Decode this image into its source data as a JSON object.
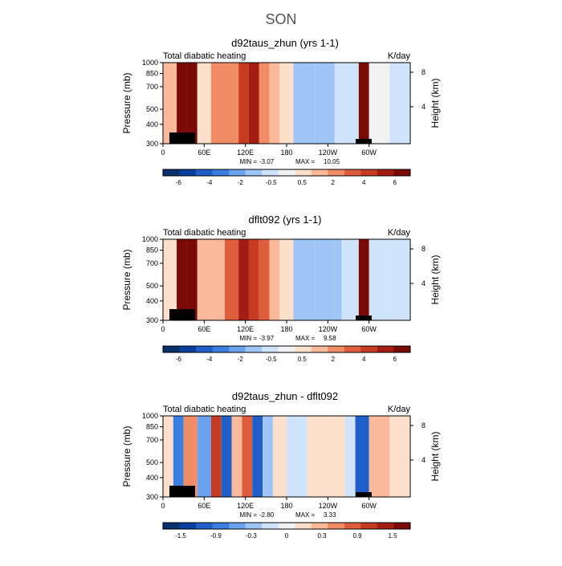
{
  "figure": {
    "title": "SON"
  },
  "colors": {
    "diverging": [
      "#08306b",
      "#0a3f9e",
      "#1f5fc7",
      "#3a7ee0",
      "#6aa2ee",
      "#9ec5f6",
      "#cfe3fb",
      "#f2f2f2",
      "#fde0cc",
      "#f9b99a",
      "#f08c66",
      "#de5d3c",
      "#c63b22",
      "#a41d12",
      "#7a0a05"
    ]
  },
  "chart_data": [
    {
      "type": "heatmap",
      "title": "d92taus_zhun (yrs 1-1)",
      "left_label": "Total diabatic heating",
      "right_label": "K/day",
      "ylabel": "Pressure (mb)",
      "ylabel_right": "Height (km)",
      "x_ticks": [
        "0",
        "60E",
        "120E",
        "180",
        "120W",
        "60W"
      ],
      "y_ticks": [
        "300",
        "400",
        "500",
        "700",
        "850",
        "1000"
      ],
      "y_right_ticks": [
        "8",
        "4"
      ],
      "min": -3.07,
      "max": 10.05,
      "min_label": "MIN =",
      "min_text": "-3.07",
      "max_label": "MAX =",
      "max_text": "10.05",
      "colorbar_labels": [
        "-6",
        "-4",
        "-2",
        "-0.5",
        "0.5",
        "2",
        "4",
        "6"
      ],
      "field": [
        {
          "lon": 0,
          "value": 1.5
        },
        {
          "lon": 20,
          "value": 8.0
        },
        {
          "lon": 35,
          "value": 6.0
        },
        {
          "lon": 50,
          "value": 1.0
        },
        {
          "lon": 70,
          "value": 2.5
        },
        {
          "lon": 90,
          "value": 3.0
        },
        {
          "lon": 110,
          "value": 4.5
        },
        {
          "lon": 125,
          "value": 5.0
        },
        {
          "lon": 140,
          "value": 3.0
        },
        {
          "lon": 155,
          "value": 2.0
        },
        {
          "lon": 170,
          "value": 0.5
        },
        {
          "lon": 190,
          "value": -1.5
        },
        {
          "lon": 220,
          "value": -1.5
        },
        {
          "lon": 250,
          "value": -1.0
        },
        {
          "lon": 260,
          "value": -0.5
        },
        {
          "lon": 285,
          "value": 8.0
        },
        {
          "lon": 300,
          "value": -0.3
        },
        {
          "lon": 330,
          "value": -0.8
        },
        {
          "lon": 358,
          "value": -0.7
        }
      ]
    },
    {
      "type": "heatmap",
      "title": "dflt092 (yrs 1-1)",
      "left_label": "Total diabatic heating",
      "right_label": "K/day",
      "ylabel": "Pressure (mb)",
      "ylabel_right": "Height (km)",
      "x_ticks": [
        "0",
        "60E",
        "120E",
        "180",
        "120W",
        "60W"
      ],
      "y_ticks": [
        "300",
        "400",
        "500",
        "700",
        "850",
        "1000"
      ],
      "y_right_ticks": [
        "8",
        "4"
      ],
      "min": -3.97,
      "max": 9.58,
      "min_label": "MIN =",
      "min_text": "-3.97",
      "max_label": "MAX =",
      "max_text": "9.58",
      "colorbar_labels": [
        "-6",
        "-4",
        "-2",
        "-0.5",
        "0.5",
        "2",
        "4",
        "6"
      ],
      "field": [
        {
          "lon": 0,
          "value": 1.0
        },
        {
          "lon": 20,
          "value": 7.5
        },
        {
          "lon": 35,
          "value": 5.5
        },
        {
          "lon": 50,
          "value": 1.5
        },
        {
          "lon": 70,
          "value": 2.0
        },
        {
          "lon": 90,
          "value": 3.5
        },
        {
          "lon": 110,
          "value": 5.0
        },
        {
          "lon": 125,
          "value": 4.5
        },
        {
          "lon": 140,
          "value": 3.5
        },
        {
          "lon": 155,
          "value": 2.0
        },
        {
          "lon": 170,
          "value": 0.5
        },
        {
          "lon": 190,
          "value": -1.5
        },
        {
          "lon": 220,
          "value": -2.0
        },
        {
          "lon": 250,
          "value": -1.5
        },
        {
          "lon": 260,
          "value": -0.8
        },
        {
          "lon": 285,
          "value": 7.5
        },
        {
          "lon": 300,
          "value": -0.5
        },
        {
          "lon": 330,
          "value": -1.0
        },
        {
          "lon": 358,
          "value": -0.8
        }
      ]
    },
    {
      "type": "heatmap",
      "title": "d92taus_zhun - dflt092",
      "left_label": "Total diabatic heating",
      "right_label": "K/day",
      "ylabel": "Pressure (mb)",
      "ylabel_right": "Height (km)",
      "x_ticks": [
        "0",
        "60E",
        "120E",
        "180",
        "120W",
        "60W"
      ],
      "y_ticks": [
        "300",
        "400",
        "500",
        "700",
        "850",
        "1000"
      ],
      "y_right_ticks": [
        "8",
        "4"
      ],
      "min": -2.8,
      "max": 3.33,
      "min_label": "MIN =",
      "min_text": "-2.80",
      "max_label": "MAX =",
      "max_text": "3.33",
      "colorbar_labels": [
        "-1.5",
        "-0.9",
        "-0.3",
        "0",
        "0.3",
        "0.9",
        "1.5"
      ],
      "field": [
        {
          "lon": 0,
          "value": 0.3
        },
        {
          "lon": 15,
          "value": -1.2
        },
        {
          "lon": 30,
          "value": 0.9
        },
        {
          "lon": 50,
          "value": -0.9
        },
        {
          "lon": 70,
          "value": 1.5
        },
        {
          "lon": 85,
          "value": -1.5
        },
        {
          "lon": 100,
          "value": 0.6
        },
        {
          "lon": 115,
          "value": 1.2
        },
        {
          "lon": 130,
          "value": -1.5
        },
        {
          "lon": 145,
          "value": -0.6
        },
        {
          "lon": 160,
          "value": 0.3
        },
        {
          "lon": 180,
          "value": -0.3
        },
        {
          "lon": 210,
          "value": 0.15
        },
        {
          "lon": 240,
          "value": 0.3
        },
        {
          "lon": 265,
          "value": -0.3
        },
        {
          "lon": 280,
          "value": -1.5
        },
        {
          "lon": 300,
          "value": 0.6
        },
        {
          "lon": 330,
          "value": 0.3
        },
        {
          "lon": 358,
          "value": 0.2
        }
      ]
    }
  ]
}
